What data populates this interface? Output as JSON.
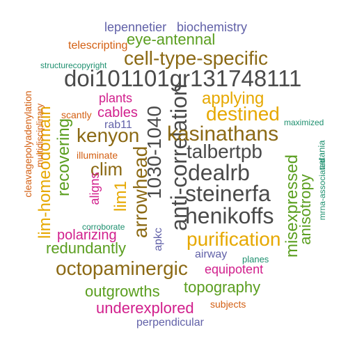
{
  "colors": {
    "slate": "#4a4a4a",
    "brown": "#8b6914",
    "gold": "#e6a800",
    "green": "#5a9e1f",
    "magenta": "#d11f8c",
    "purple": "#6161a8",
    "teal": "#1d8f6e",
    "orange": "#d35f12"
  },
  "words": [
    "doi101101gr131748111",
    "anti-correlation",
    "1030-1040",
    "steinerfa",
    "henikoffs",
    "dealrb",
    "talbertpb",
    "kasinathans",
    "octopaminergic",
    "cell-type-specific",
    "arrowhead",
    "purification",
    "kenyon",
    "destined",
    "applying",
    "lim-homeodomain",
    "recovering",
    "misexpressed",
    "anisotropy",
    "clim",
    "lim1",
    "eye-antennal",
    "biochemistry",
    "lepennetier",
    "telescripting",
    "structurecopyright",
    "cleavagepolyadenylation",
    "multidisciplinary",
    "plants",
    "cables",
    "rab11",
    "scantly",
    "illuminate",
    "aligns",
    "polarizing",
    "corroborate",
    "redundantly",
    "apkc",
    "airway",
    "planes",
    "equipotent",
    "outgrowths",
    "topography",
    "underexplored",
    "subjects",
    "perpendicular",
    "maximized",
    "catania",
    "mrna-associated"
  ]
}
